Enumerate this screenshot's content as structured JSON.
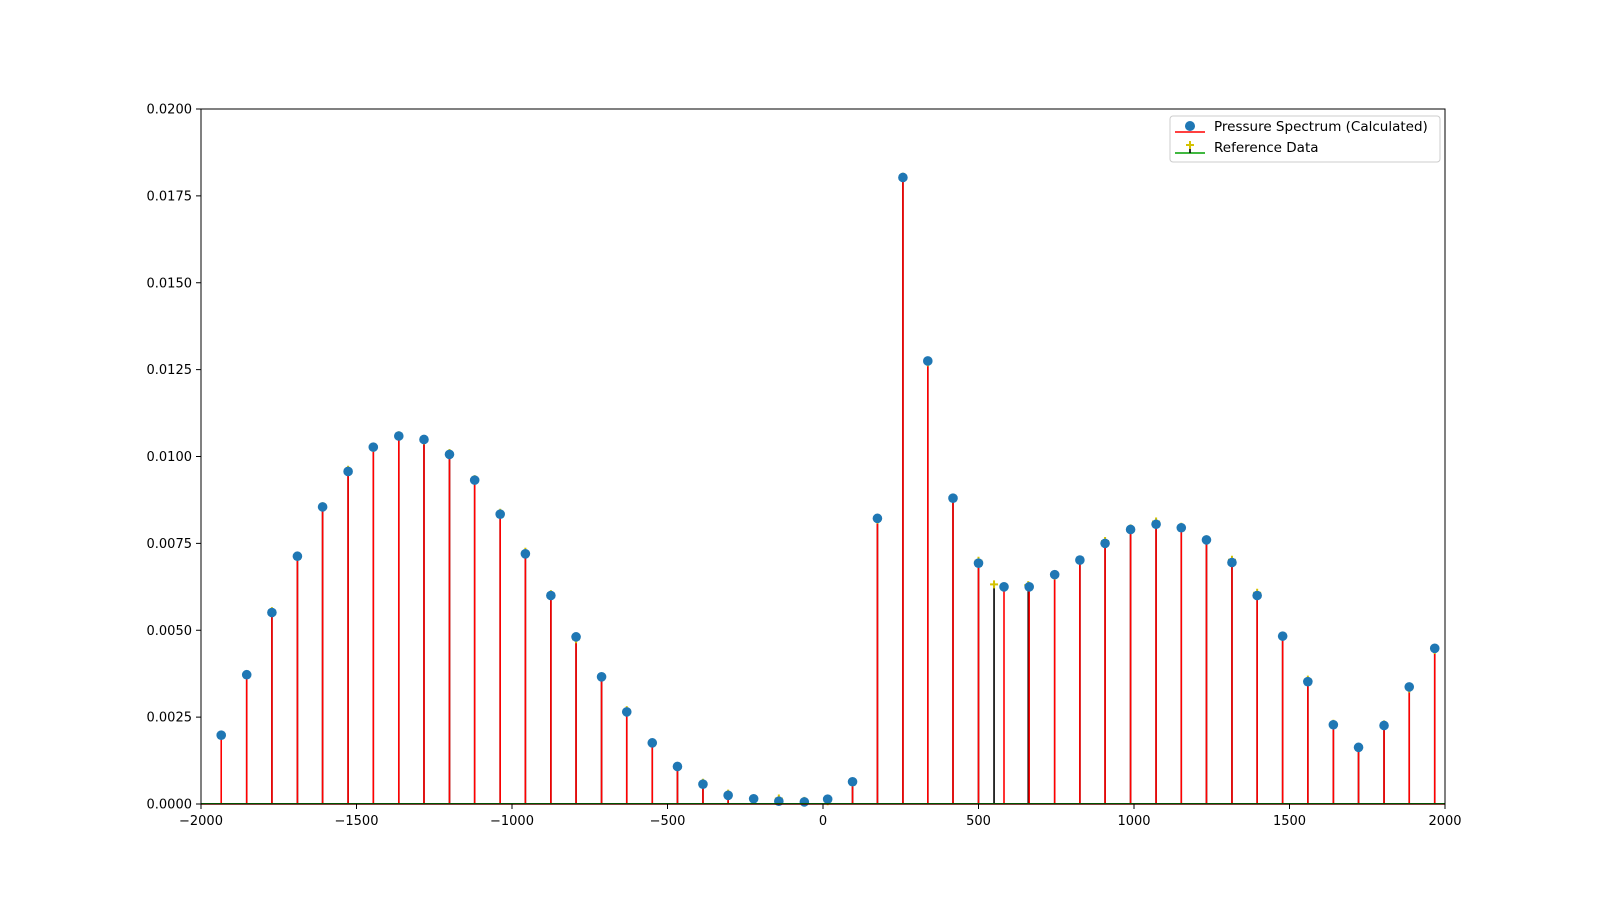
{
  "chart_data": {
    "type": "stem",
    "title": "",
    "xlabel": "",
    "ylabel": "",
    "xlim": [
      -2000,
      2000
    ],
    "ylim": [
      0,
      0.02
    ],
    "x_ticks": [
      "−2000",
      "−1500",
      "−1000",
      "−500",
      "0",
      "500",
      "1000",
      "1500",
      "2000"
    ],
    "x_tick_values": [
      -2000,
      -1500,
      -1000,
      -500,
      0,
      500,
      1000,
      1500,
      2000
    ],
    "y_ticks": [
      "0.0000",
      "0.0025",
      "0.0050",
      "0.0075",
      "0.0100",
      "0.0125",
      "0.0150",
      "0.0175",
      "0.0200"
    ],
    "y_tick_values": [
      0,
      0.0025,
      0.005,
      0.0075,
      0.01,
      0.0125,
      0.015,
      0.0175,
      0.02
    ],
    "legend_position": "upper right",
    "series": [
      {
        "name": "Pressure Spectrum (Calculated)",
        "marker_color": "#1f77b4",
        "stem_color": "#ff0000",
        "x": [
          -1935,
          -1853,
          -1772,
          -1690,
          -1609,
          -1527,
          -1446,
          -1364,
          -1283,
          -1201,
          -1120,
          -1038,
          -957,
          -875,
          -794,
          -712,
          -631,
          -549,
          -468,
          -386,
          -305,
          -223,
          -142,
          -60,
          15,
          95,
          175,
          257,
          337,
          418,
          500,
          582,
          663,
          745,
          826,
          907,
          989,
          1071,
          1152,
          1233,
          1315,
          1396,
          1478,
          1559,
          1641,
          1722,
          1804,
          1885,
          1967
        ],
        "values": [
          0.00198,
          0.00372,
          0.00551,
          0.00713,
          0.00855,
          0.00957,
          0.01027,
          0.01059,
          0.01049,
          0.01006,
          0.00932,
          0.00834,
          0.0072,
          0.006,
          0.00481,
          0.00366,
          0.00265,
          0.00176,
          0.00108,
          0.00057,
          0.00025,
          0.00015,
          8e-05,
          6e-05,
          0.00014,
          0.00064,
          0.00822,
          0.01803,
          0.01275,
          0.0088,
          0.00693,
          0.00625,
          0.00625,
          0.0066,
          0.00702,
          0.0075,
          0.0079,
          0.00805,
          0.00795,
          0.0076,
          0.00695,
          0.006,
          0.00483,
          0.00352,
          0.00228,
          0.00163,
          0.00226,
          0.00337,
          0.00448
        ]
      },
      {
        "name": "Reference Data",
        "marker_color": "#d4c200",
        "stem_color": "#000000",
        "baseline_color": "#00a000",
        "x": [
          -1853,
          -1772,
          -1690,
          -1609,
          -1527,
          -1446,
          -1364,
          -1283,
          -1201,
          -1120,
          -1038,
          -957,
          -875,
          -794,
          -712,
          -631,
          -549,
          -468,
          -386,
          -305,
          -223,
          -142,
          -60,
          15,
          95,
          175,
          257,
          337,
          418,
          500,
          550,
          660,
          745,
          826,
          907,
          989,
          1071,
          1152,
          1233,
          1315,
          1396,
          1478,
          1559,
          1641,
          1722,
          1804,
          1885,
          1967
        ],
        "values": [
          0.00372,
          0.00555,
          0.00712,
          0.00857,
          0.00962,
          0.01025,
          0.01061,
          0.01046,
          0.0101,
          0.00935,
          0.00838,
          0.00726,
          0.00604,
          0.00474,
          0.00366,
          0.0027,
          0.00176,
          0.00108,
          0.00061,
          0.0003,
          0.0001,
          0.00016,
          9e-05,
          8e-05,
          0.00062,
          0.00818,
          0.01805,
          0.01271,
          0.00882,
          0.007,
          0.00632,
          0.0063,
          0.00657,
          0.00702,
          0.00757,
          0.00793,
          0.00813,
          0.00798,
          0.00762,
          0.00703,
          0.00608,
          0.00485,
          0.00358,
          0.00231,
          0.00164,
          0.00229,
          0.00332,
          0.00443
        ]
      }
    ]
  }
}
